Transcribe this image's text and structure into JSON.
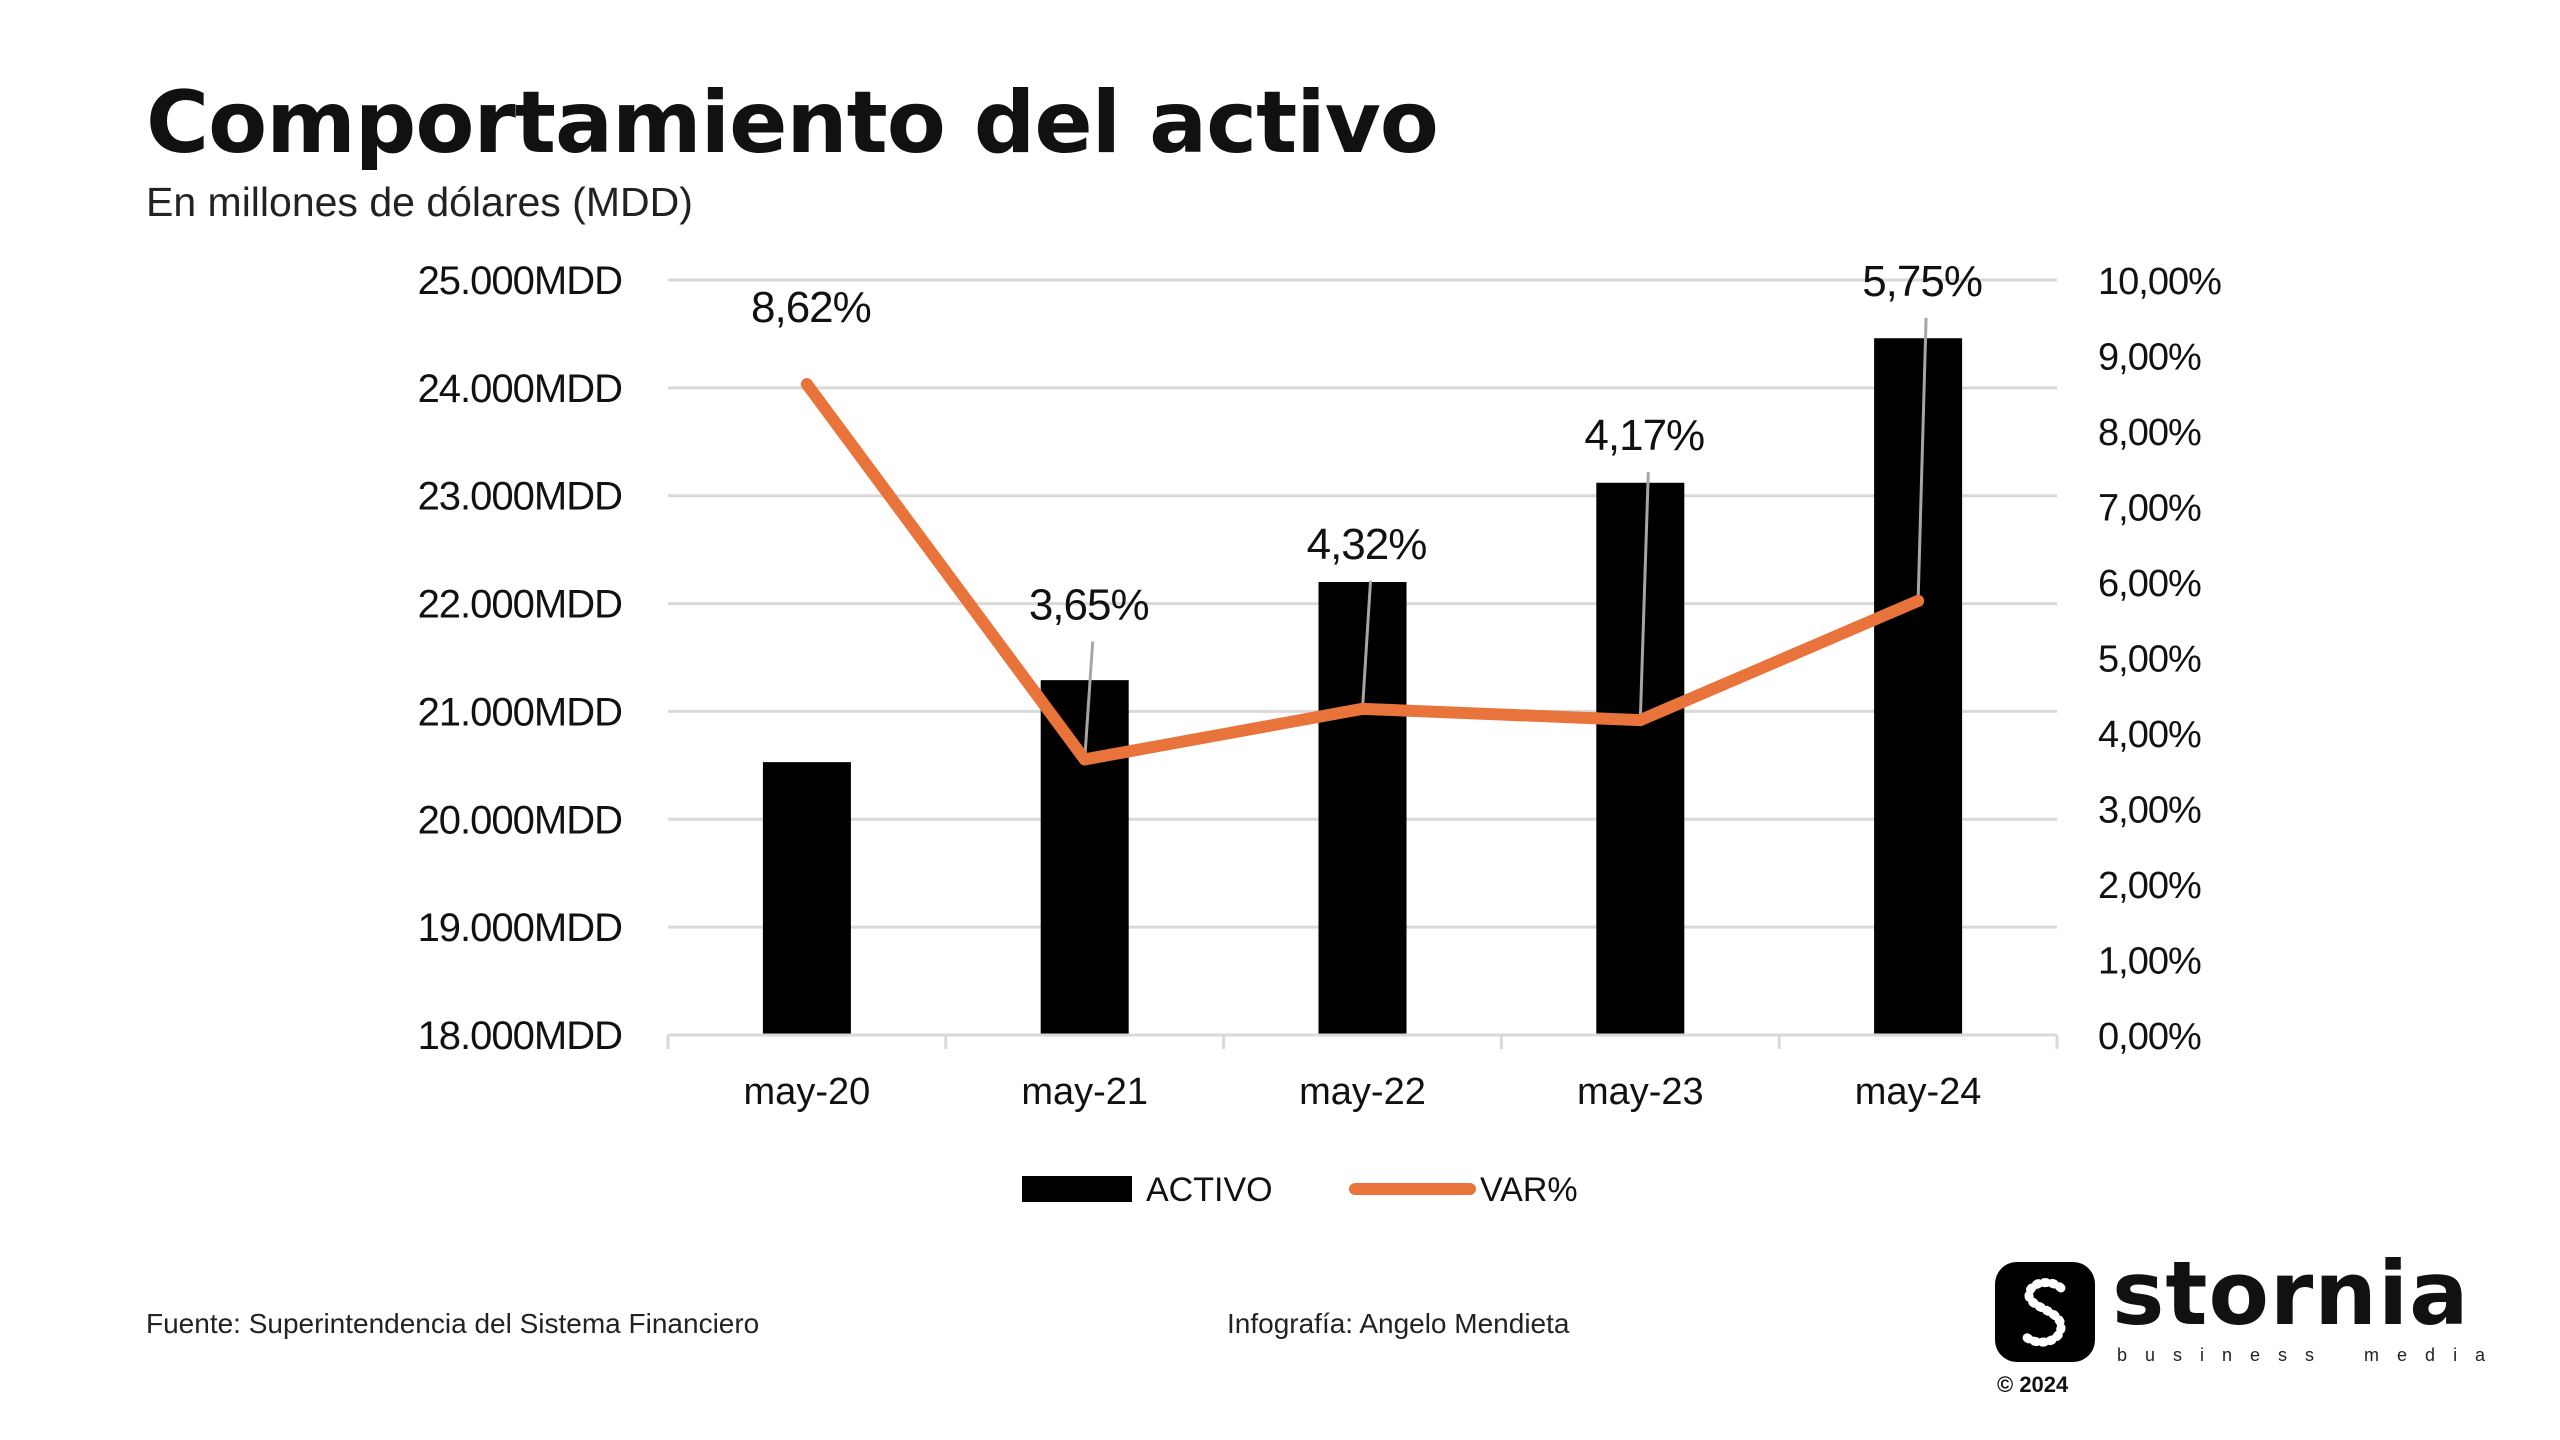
{
  "header": {
    "title": "Comportamiento del activo",
    "subtitle": "En millones de dólares (MDD)"
  },
  "chart_data": {
    "type": "bar",
    "categories": [
      "may-20",
      "may-21",
      "may-22",
      "may-23",
      "may-24"
    ],
    "series": [
      {
        "name": "ACTIVO",
        "type": "bar",
        "axis": "left",
        "color": "#000000",
        "values": [
          20530,
          21290,
          22200,
          23120,
          24460
        ]
      },
      {
        "name": "VAR%",
        "type": "line",
        "axis": "right",
        "color": "#E8743B",
        "values": [
          8.62,
          3.65,
          4.32,
          4.17,
          5.75
        ],
        "labels": [
          "8,62%",
          "3,65%",
          "4,32%",
          "4,17%",
          "5,75%"
        ]
      }
    ],
    "y_left": {
      "ylim": [
        18000,
        25000
      ],
      "ticks": [
        "18.000MDD",
        "19.000MDD",
        "20.000MDD",
        "21.000MDD",
        "22.000MDD",
        "23.000MDD",
        "24.000MDD",
        "25.000MDD"
      ]
    },
    "y_right": {
      "ylim": [
        0,
        10
      ],
      "ticks": [
        "0,00%",
        "1,00%",
        "2,00%",
        "3,00%",
        "4,00%",
        "5,00%",
        "6,00%",
        "7,00%",
        "8,00%",
        "9,00%",
        "10,00%"
      ]
    },
    "grid": true,
    "legend_position": "bottom-center",
    "colors": {
      "bar": "#000000",
      "line": "#E8743B",
      "grid": "#D9D9D9",
      "leader": "#A6A6A6"
    }
  },
  "footer": {
    "source": "Fuente: Superintendencia del Sistema Financiero",
    "credit": "Infografía: Angelo Mendieta"
  },
  "brand": {
    "name": "stornia",
    "tagline_1": "business",
    "tagline_2": "media",
    "year": "© 2024"
  }
}
